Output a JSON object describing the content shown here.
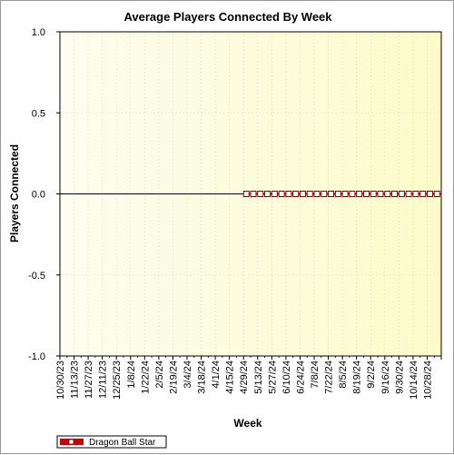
{
  "chart_data": {
    "type": "line",
    "title": "Average Players Connected By Week",
    "xlabel": "Week",
    "ylabel": "Players Connected",
    "ylim": [
      -1.0,
      1.0
    ],
    "yticks": [
      "1.0",
      "0.5",
      "0.0",
      "-0.5",
      "-1.0"
    ],
    "ytick_values": [
      1.0,
      0.5,
      0.0,
      -0.5,
      -1.0
    ],
    "x_tick_labels": [
      "10/30/23",
      "11/13/23",
      "11/27/23",
      "12/11/23",
      "12/25/23",
      "1/8/24",
      "1/22/24",
      "2/5/24",
      "2/19/24",
      "3/4/24",
      "3/18/24",
      "4/1/24",
      "4/15/24",
      "4/29/24",
      "5/13/24",
      "5/27/24",
      "6/10/24",
      "6/24/24",
      "7/8/24",
      "7/22/24",
      "8/5/24",
      "8/19/24",
      "9/2/24",
      "9/16/24",
      "9/30/24",
      "10/14/24",
      "10/28/24"
    ],
    "x": [
      "10/30/23",
      "11/6/23",
      "11/13/23",
      "11/20/23",
      "11/27/23",
      "12/4/23",
      "12/11/23",
      "12/18/23",
      "12/25/23",
      "1/1/24",
      "1/8/24",
      "1/15/24",
      "1/22/24",
      "1/29/24",
      "2/5/24",
      "2/12/24",
      "2/19/24",
      "2/26/24",
      "3/4/24",
      "3/11/24",
      "3/18/24",
      "3/25/24",
      "4/1/24",
      "4/8/24",
      "4/15/24",
      "4/22/24",
      "4/29/24",
      "5/6/24",
      "5/13/24",
      "5/20/24",
      "5/27/24",
      "6/3/24",
      "6/10/24",
      "6/17/24",
      "6/24/24",
      "7/1/24",
      "7/8/24",
      "7/15/24",
      "7/22/24",
      "7/29/24",
      "8/5/24",
      "8/12/24",
      "8/19/24",
      "8/26/24",
      "9/2/24",
      "9/9/24",
      "9/16/24",
      "9/23/24",
      "9/30/24",
      "10/7/24",
      "10/14/24",
      "10/21/24",
      "10/28/24",
      "11/4/24"
    ],
    "series": [
      {
        "name": "Dragon Ball Star",
        "color": "#cc0000",
        "values": [
          0,
          0,
          0,
          0,
          0,
          0,
          0,
          0,
          0,
          0,
          0,
          0,
          0,
          0,
          0,
          0,
          0,
          0,
          0,
          0,
          0,
          0,
          0,
          0,
          0,
          0,
          0,
          0,
          0,
          0,
          0,
          0,
          0,
          0,
          0,
          0,
          0,
          0,
          0,
          0,
          0,
          0,
          0,
          0,
          0,
          0,
          0,
          0,
          0,
          0,
          0,
          0,
          0,
          0
        ],
        "marker_values": [
          0,
          0,
          0,
          0,
          0,
          0,
          0,
          0,
          0,
          0,
          0,
          0,
          0,
          0,
          0,
          0,
          0,
          0,
          0,
          0,
          0,
          0,
          0,
          0,
          0,
          0,
          0,
          0
        ],
        "marker_start_week": "4/29/24"
      }
    ],
    "grid": true,
    "legend_position": "bottom-left",
    "plot_background": "#fdfde0"
  }
}
